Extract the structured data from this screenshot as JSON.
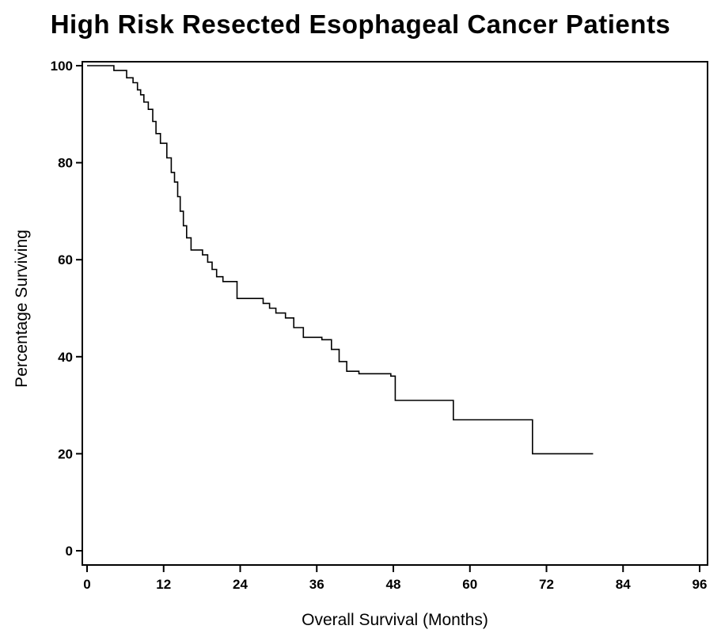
{
  "chart_data": {
    "type": "line",
    "step": true,
    "title": "High Risk Resected Esophageal Cancer Patients",
    "xlabel": "Overall Survival (Months)",
    "ylabel": "Percentage Surviving",
    "xlim": [
      0,
      96
    ],
    "ylim": [
      0,
      100
    ],
    "xticks": [
      0,
      12,
      24,
      36,
      48,
      60,
      72,
      84,
      96
    ],
    "yticks": [
      0,
      20,
      40,
      60,
      80,
      100
    ],
    "grid": false,
    "line_color": "#000000",
    "series": [
      {
        "x": [
          0,
          4.2,
          6.2,
          7.2,
          7.9,
          8.4,
          8.9,
          9.6,
          10.3,
          10.8,
          11.5,
          12.5,
          13.2,
          13.7,
          14.2,
          14.6,
          15.1,
          15.6,
          16.3,
          18.1,
          18.9,
          19.6,
          20.3,
          21.3,
          23.5,
          27.6,
          28.6,
          29.6,
          31.1,
          32.4,
          33.9,
          36.8,
          38.3,
          39.5,
          40.7,
          42.6,
          47.6,
          48.3,
          57.4,
          69.8,
          79.3
        ],
        "y": [
          100,
          99,
          97.5,
          96.5,
          95,
          94,
          92.5,
          91,
          88.5,
          86,
          84,
          81,
          78,
          76,
          73,
          70,
          67,
          64.5,
          62,
          61,
          59.5,
          58,
          56.5,
          55.5,
          52,
          51,
          50,
          49,
          48,
          46,
          44,
          43.5,
          41.5,
          39,
          37,
          36.5,
          36,
          31,
          27,
          20,
          20
        ]
      }
    ]
  }
}
